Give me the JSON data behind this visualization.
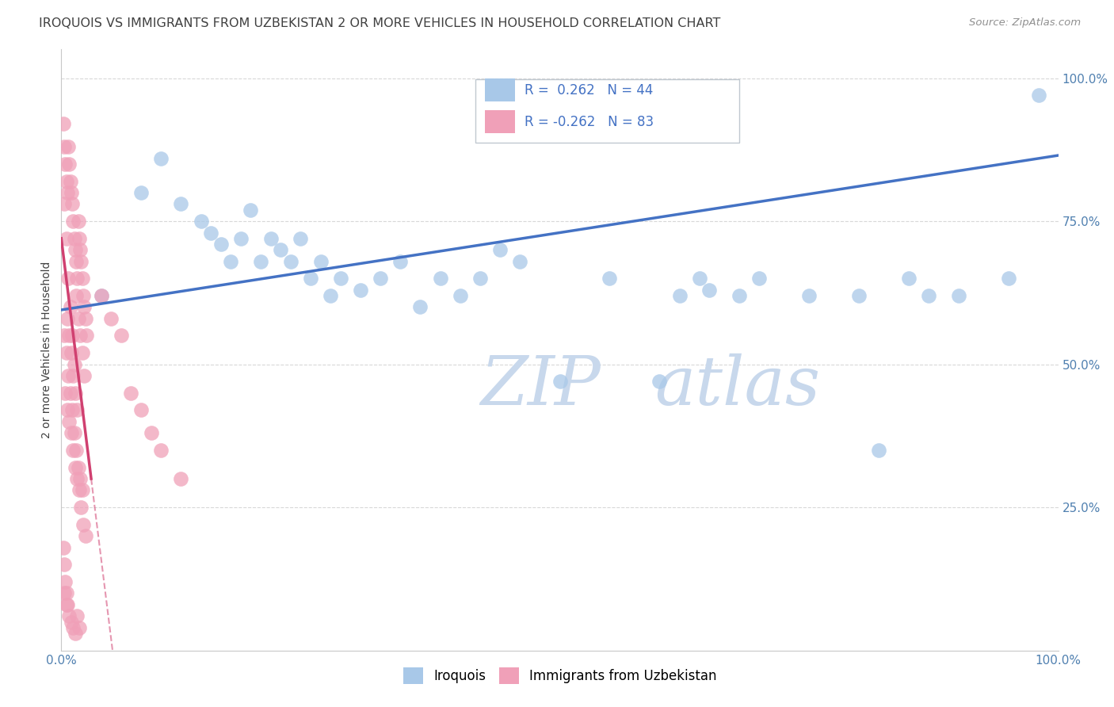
{
  "title": "IROQUOIS VS IMMIGRANTS FROM UZBEKISTAN 2 OR MORE VEHICLES IN HOUSEHOLD CORRELATION CHART",
  "source": "Source: ZipAtlas.com",
  "ylabel": "2 or more Vehicles in Household",
  "legend_label1": "Iroquois",
  "legend_label2": "Immigrants from Uzbekistan",
  "R1": 0.262,
  "N1": 44,
  "R2": -0.262,
  "N2": 83,
  "blue_color": "#a8c8e8",
  "pink_color": "#f0a0b8",
  "line_blue": "#4472c4",
  "line_pink": "#d04070",
  "title_color": "#404040",
  "source_color": "#909090",
  "axis_label_color": "#404040",
  "tick_color": "#5080b0",
  "legend_r_color": "#4472c4",
  "watermark_zip_color": "#c8d8ec",
  "watermark_atlas_color": "#c8d8ec",
  "blue_scatter_x": [
    0.04,
    0.08,
    0.1,
    0.12,
    0.14,
    0.15,
    0.16,
    0.17,
    0.18,
    0.19,
    0.2,
    0.21,
    0.22,
    0.23,
    0.24,
    0.25,
    0.26,
    0.27,
    0.28,
    0.3,
    0.32,
    0.34,
    0.36,
    0.38,
    0.4,
    0.42,
    0.44,
    0.46,
    0.5,
    0.55,
    0.6,
    0.62,
    0.64,
    0.65,
    0.68,
    0.7,
    0.75,
    0.8,
    0.82,
    0.85,
    0.87,
    0.9,
    0.95,
    0.98
  ],
  "blue_scatter_y": [
    0.62,
    0.8,
    0.86,
    0.78,
    0.75,
    0.73,
    0.71,
    0.68,
    0.72,
    0.77,
    0.68,
    0.72,
    0.7,
    0.68,
    0.72,
    0.65,
    0.68,
    0.62,
    0.65,
    0.63,
    0.65,
    0.68,
    0.6,
    0.65,
    0.62,
    0.65,
    0.7,
    0.68,
    0.47,
    0.65,
    0.47,
    0.62,
    0.65,
    0.63,
    0.62,
    0.65,
    0.62,
    0.62,
    0.35,
    0.65,
    0.62,
    0.62,
    0.65,
    0.97
  ],
  "pink_scatter_x": [
    0.002,
    0.003,
    0.004,
    0.005,
    0.006,
    0.007,
    0.008,
    0.009,
    0.01,
    0.011,
    0.012,
    0.013,
    0.014,
    0.015,
    0.016,
    0.017,
    0.018,
    0.019,
    0.02,
    0.021,
    0.022,
    0.023,
    0.024,
    0.025,
    0.003,
    0.005,
    0.007,
    0.009,
    0.011,
    0.013,
    0.015,
    0.017,
    0.019,
    0.021,
    0.023,
    0.004,
    0.006,
    0.008,
    0.01,
    0.012,
    0.014,
    0.016,
    0.018,
    0.02,
    0.022,
    0.024,
    0.003,
    0.005,
    0.007,
    0.009,
    0.011,
    0.013,
    0.015,
    0.017,
    0.019,
    0.021,
    0.006,
    0.008,
    0.01,
    0.012,
    0.014,
    0.016,
    0.04,
    0.05,
    0.06,
    0.07,
    0.08,
    0.09,
    0.1,
    0.12,
    0.002,
    0.003,
    0.004,
    0.005,
    0.006,
    0.008,
    0.01,
    0.012,
    0.014,
    0.016,
    0.018,
    0.003,
    0.005
  ],
  "pink_scatter_y": [
    0.92,
    0.88,
    0.85,
    0.82,
    0.8,
    0.88,
    0.85,
    0.82,
    0.8,
    0.78,
    0.75,
    0.72,
    0.7,
    0.68,
    0.65,
    0.75,
    0.72,
    0.7,
    0.68,
    0.65,
    0.62,
    0.6,
    0.58,
    0.55,
    0.78,
    0.72,
    0.65,
    0.6,
    0.55,
    0.5,
    0.62,
    0.58,
    0.55,
    0.52,
    0.48,
    0.45,
    0.42,
    0.4,
    0.38,
    0.35,
    0.32,
    0.3,
    0.28,
    0.25,
    0.22,
    0.2,
    0.55,
    0.52,
    0.48,
    0.45,
    0.42,
    0.38,
    0.35,
    0.32,
    0.3,
    0.28,
    0.58,
    0.55,
    0.52,
    0.48,
    0.45,
    0.42,
    0.62,
    0.58,
    0.55,
    0.45,
    0.42,
    0.38,
    0.35,
    0.3,
    0.18,
    0.15,
    0.12,
    0.1,
    0.08,
    0.06,
    0.05,
    0.04,
    0.03,
    0.06,
    0.04,
    0.1,
    0.08
  ]
}
